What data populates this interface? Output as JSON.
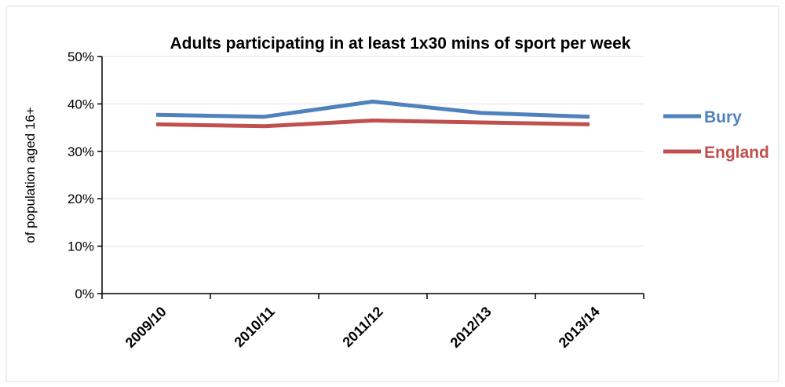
{
  "chart_data": {
    "type": "line",
    "title": "Adults participating in at least 1x30 mins of sport per week",
    "y_label": "of population aged 16+",
    "categories": [
      "2009/10",
      "2010/11",
      "2011/12",
      "2012/13",
      "2013/14"
    ],
    "series": [
      {
        "name": "Bury",
        "color": "#4f81bd",
        "values": [
          37.7,
          37.3,
          40.5,
          38.1,
          37.3
        ]
      },
      {
        "name": "England",
        "color": "#c0504d",
        "values": [
          35.7,
          35.3,
          36.5,
          36.1,
          35.7
        ]
      }
    ],
    "ylim": [
      0,
      50
    ],
    "yticks": [
      {
        "value": 0,
        "label": "0%"
      },
      {
        "value": 10,
        "label": "10%"
      },
      {
        "value": 20,
        "label": "20%"
      },
      {
        "value": 30,
        "label": "30%"
      },
      {
        "value": 40,
        "label": "40%"
      },
      {
        "value": 50,
        "label": "50%"
      }
    ],
    "grid": true,
    "legend": "right"
  }
}
